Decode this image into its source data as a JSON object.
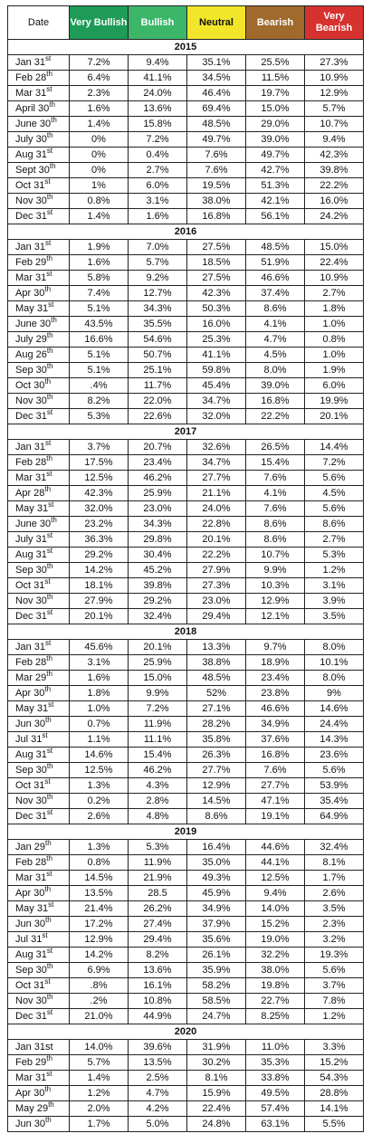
{
  "table": {
    "header": [
      "Date",
      "Very Bullish",
      "Bullish",
      "Neutral",
      "Bearish",
      "Very Bearish"
    ],
    "sections": [
      {
        "year": "2015",
        "rows": [
          {
            "d": "Jan 31",
            "s": "st",
            "v": [
              "7.2%",
              "9.4%",
              "35.1%",
              "25.5%",
              "27.3%"
            ]
          },
          {
            "d": "Feb 28",
            "s": "th",
            "v": [
              "6.4%",
              "41.1%",
              "34.5%",
              "11.5%",
              "10.9%"
            ]
          },
          {
            "d": "Mar 31",
            "s": "st",
            "v": [
              "2.3%",
              "24.0%",
              "46.4%",
              "19.7%",
              "12.9%"
            ]
          },
          {
            "d": "April 30",
            "s": "th",
            "v": [
              "1.6%",
              "13.6%",
              "69.4%",
              "15.0%",
              "5.7%"
            ]
          },
          {
            "d": "June 30",
            "s": "th",
            "v": [
              "1.4%",
              "15.8%",
              "48.5%",
              "29.0%",
              "10.7%"
            ]
          },
          {
            "d": "July 30",
            "s": "th",
            "v": [
              "0%",
              "7.2%",
              "49.7%",
              "39.0%",
              "9.4%"
            ]
          },
          {
            "d": "Aug 31",
            "s": "st",
            "v": [
              "0%",
              "0.4%",
              "7.6%",
              "49.7%",
              "42.3%"
            ]
          },
          {
            "d": "Sept 30",
            "s": "th",
            "v": [
              "0%",
              "2.7%",
              "7.6%",
              "42.7%",
              "39.8%"
            ]
          },
          {
            "d": "Oct 31",
            "s": "st",
            "v": [
              "1%",
              "6.0%",
              "19.5%",
              "51.3%",
              "22.2%"
            ]
          },
          {
            "d": "Nov 30",
            "s": "th",
            "v": [
              "0.8%",
              "3.1%",
              "38.0%",
              "42.1%",
              "16.0%"
            ]
          },
          {
            "d": "Dec 31",
            "s": "st",
            "v": [
              "1.4%",
              "1.6%",
              "16.8%",
              "56.1%",
              "24.2%"
            ]
          }
        ]
      },
      {
        "year": "2016",
        "rows": [
          {
            "d": "Jan 31",
            "s": "st",
            "v": [
              "1.9%",
              "7.0%",
              "27.5%",
              "48.5%",
              "15.0%"
            ]
          },
          {
            "d": "Feb 29",
            "s": "th",
            "v": [
              "1.6%",
              "5.7%",
              "18.5%",
              "51.9%",
              "22.4%"
            ]
          },
          {
            "d": "Mar 31",
            "s": "st",
            "v": [
              "5.8%",
              "9.2%",
              "27.5%",
              "46.6%",
              "10.9%"
            ]
          },
          {
            "d": "Apr 30",
            "s": "th",
            "v": [
              "7.4%",
              "12.7%",
              "42.3%",
              "37.4%",
              "2.7%"
            ]
          },
          {
            "d": "May 31",
            "s": "st",
            "v": [
              "5.1%",
              "34.3%",
              "50.3%",
              "8.6%",
              "1.8%"
            ]
          },
          {
            "d": "June 30",
            "s": "th",
            "v": [
              "43.5%",
              "35.5%",
              "16.0%",
              "4.1%",
              "1.0%"
            ]
          },
          {
            "d": "July 29",
            "s": "th",
            "v": [
              "16.6%",
              "54.6%",
              "25.3%",
              "4.7%",
              "0.8%"
            ]
          },
          {
            "d": "Aug 26",
            "s": "th",
            "v": [
              "5.1%",
              "50.7%",
              "41.1%",
              "4.5%",
              "1.0%"
            ]
          },
          {
            "d": "Sep 30",
            "s": "th",
            "v": [
              "5.1%",
              "25.1%",
              "59.8%",
              "8.0%",
              "1.9%"
            ]
          },
          {
            "d": "Oct 30",
            "s": "th",
            "v": [
              ".4%",
              "11.7%",
              "45.4%",
              "39.0%",
              "6.0%"
            ]
          },
          {
            "d": "Nov 30",
            "s": "th",
            "v": [
              "8.2%",
              "22.0%",
              "34.7%",
              "16.8%",
              "19.9%"
            ]
          },
          {
            "d": "Dec 31",
            "s": "st",
            "v": [
              "5.3%",
              "22.6%",
              "32.0%",
              "22.2%",
              "20.1%"
            ]
          }
        ]
      },
      {
        "year": "2017",
        "rows": [
          {
            "d": "Jan 31",
            "s": "st",
            "v": [
              "3.7%",
              "20.7%",
              "32.6%",
              "26.5%",
              "14.4%"
            ]
          },
          {
            "d": "Feb 28",
            "s": "th",
            "v": [
              "17.5%",
              "23.4%",
              "34.7%",
              "15.4%",
              "7.2%"
            ]
          },
          {
            "d": "Mar 31",
            "s": "st",
            "v": [
              "12.5%",
              "46.2%",
              "27.7%",
              "7.6%",
              "5.6%"
            ]
          },
          {
            "d": "Apr 28",
            "s": "th",
            "v": [
              "42.3%",
              "25.9%",
              "21.1%",
              "4.1%",
              "4.5%"
            ]
          },
          {
            "d": "May 31",
            "s": "st",
            "v": [
              "32.0%",
              "23.0%",
              "24.0%",
              "7.6%",
              "5.6%"
            ]
          },
          {
            "d": "June 30",
            "s": "th",
            "v": [
              "23.2%",
              "34.3%",
              "22.8%",
              "8.6%",
              "8.6%"
            ]
          },
          {
            "d": "July 31",
            "s": "st",
            "v": [
              "36.3%",
              "29.8%",
              "20.1%",
              "8.6%",
              "2.7%"
            ]
          },
          {
            "d": "Aug 31",
            "s": "st",
            "v": [
              "29.2%",
              "30.4%",
              "22.2%",
              "10.7%",
              "5.3%"
            ]
          },
          {
            "d": "Sep 30",
            "s": "th",
            "v": [
              "14.2%",
              "45.2%",
              "27.9%",
              "9.9%",
              "1.2%"
            ]
          },
          {
            "d": "Oct 31",
            "s": "st",
            "v": [
              "18.1%",
              "39.8%",
              "27.3%",
              "10.3%",
              "3.1%"
            ]
          },
          {
            "d": "Nov 30",
            "s": "th",
            "v": [
              "27.9%",
              "29.2%",
              "23.0%",
              "12.9%",
              "3.9%"
            ]
          },
          {
            "d": "Dec 31",
            "s": "st",
            "v": [
              "20.1%",
              "32.4%",
              "29.4%",
              "12.1%",
              "3.5%"
            ]
          }
        ]
      },
      {
        "year": "2018",
        "rows": [
          {
            "d": "Jan 31",
            "s": "st",
            "v": [
              "45.6%",
              "20.1%",
              "13.3%",
              "9.7%",
              "8.0%"
            ]
          },
          {
            "d": "Feb 28",
            "s": "th",
            "v": [
              "3.1%",
              "25.9%",
              "38.8%",
              "18.9%",
              "10.1%"
            ]
          },
          {
            "d": "Mar 29",
            "s": "th",
            "v": [
              "1.6%",
              "15.0%",
              "48.5%",
              "23.4%",
              "8.0%"
            ]
          },
          {
            "d": "Apr 30",
            "s": "th",
            "v": [
              "1.8%",
              "9.9%",
              "52%",
              "23.8%",
              "9%"
            ]
          },
          {
            "d": "May 31",
            "s": "st",
            "v": [
              "1.0%",
              "7.2%",
              "27.1%",
              "46.6%",
              "14.6%"
            ]
          },
          {
            "d": "Jun 30",
            "s": "th",
            "v": [
              "0.7%",
              "11.9%",
              "28.2%",
              "34.9%",
              "24.4%"
            ]
          },
          {
            "d": "Jul 31",
            "s": "st",
            "v": [
              "1.1%",
              "11.1%",
              "35.8%",
              "37.6%",
              "14.3%"
            ]
          },
          {
            "d": "Aug 31",
            "s": "st",
            "v": [
              "14.6%",
              "15.4%",
              "26.3%",
              "16.8%",
              "23.6%"
            ]
          },
          {
            "d": "Sep 30",
            "s": "th",
            "v": [
              "12.5%",
              "46.2%",
              "27.7%",
              "7.6%",
              "5.6%"
            ]
          },
          {
            "d": "Oct 31",
            "s": "st",
            "v": [
              "1.3%",
              "4.3%",
              "12.9%",
              "27.7%",
              "53.9%"
            ]
          },
          {
            "d": "Nov 30",
            "s": "th",
            "v": [
              "0.2%",
              "2.8%",
              "14.5%",
              "47.1%",
              "35.4%"
            ]
          },
          {
            "d": "Dec 31",
            "s": "st",
            "v": [
              "2.6%",
              "4.8%",
              "8.6%",
              "19.1%",
              "64.9%"
            ]
          }
        ]
      },
      {
        "year": "2019",
        "rows": [
          {
            "d": "Jan 29",
            "s": "th",
            "v": [
              "1.3%",
              "5.3%",
              "16.4%",
              "44.6%",
              "32.4%"
            ]
          },
          {
            "d": "Feb 28",
            "s": "th",
            "v": [
              "0.8%",
              "11.9%",
              "35.0%",
              "44.1%",
              "8.1%"
            ]
          },
          {
            "d": "Mar 31",
            "s": "st",
            "v": [
              "14.5%",
              "21.9%",
              "49.3%",
              "12.5%",
              "1.7%"
            ]
          },
          {
            "d": "Apr 30",
            "s": "th",
            "v": [
              "13.5%",
              "28.5",
              "45.9%",
              "9.4%",
              "2.6%"
            ]
          },
          {
            "d": "May 31",
            "s": "st",
            "v": [
              "21.4%",
              "26.2%",
              "34.9%",
              "14.0%",
              "3.5%"
            ]
          },
          {
            "d": "Jun 30",
            "s": "th",
            "v": [
              "17.2%",
              "27.4%",
              "37.9%",
              "15.2%",
              "2.3%"
            ]
          },
          {
            "d": "Jul 31",
            "s": "st",
            "v": [
              "12.9%",
              "29.4%",
              "35.6%",
              "19.0%",
              "3.2%"
            ]
          },
          {
            "d": "Aug 31",
            "s": "st",
            "v": [
              "14.2%",
              "8.2%",
              "26.1%",
              "32.2%",
              "19.3%"
            ]
          },
          {
            "d": "Sep 30",
            "s": "th",
            "v": [
              "6.9%",
              "13.6%",
              "35.9%",
              "38.0%",
              "5.6%"
            ]
          },
          {
            "d": "Oct 31",
            "s": "st",
            "v": [
              ".8%",
              "16.1%",
              "58.2%",
              "19.8%",
              "3.7%"
            ]
          },
          {
            "d": "Nov 30",
            "s": "th",
            "v": [
              ".2%",
              "10.8%",
              "58.5%",
              "22.7%",
              "7.8%"
            ]
          },
          {
            "d": "Dec 31",
            "s": "st",
            "v": [
              "21.0%",
              "44.9%",
              "24.7%",
              "8.25%",
              "1.2%"
            ]
          }
        ]
      },
      {
        "year": "2020",
        "rows": [
          {
            "d": "Jan 31st",
            "v": [
              "14.0%",
              "39.6%",
              "31.9%",
              "11.0%",
              "3.3%"
            ]
          },
          {
            "d": "Feb 29",
            "s": "th",
            "v": [
              "5.7%",
              "13.5%",
              "30.2%",
              "35.3%",
              "15.2%"
            ]
          },
          {
            "d": "Mar 31",
            "s": "st",
            "v": [
              "1.4%",
              "2.5%",
              "8.1%",
              "33.8%",
              "54.3%"
            ]
          },
          {
            "d": "Apr 30",
            "s": "th",
            "v": [
              "1.2%",
              "4.7%",
              "15.9%",
              "49.5%",
              "28.8%"
            ]
          },
          {
            "d": "May 29",
            "s": "th",
            "v": [
              "2.0%",
              "4.2%",
              "22.4%",
              "57.4%",
              "14.1%"
            ]
          },
          {
            "d": "Jun 30",
            "s": "th",
            "v": [
              "1.7%",
              "5.0%",
              "24.8%",
              "63.1%",
              "5.5%"
            ]
          }
        ]
      }
    ]
  }
}
